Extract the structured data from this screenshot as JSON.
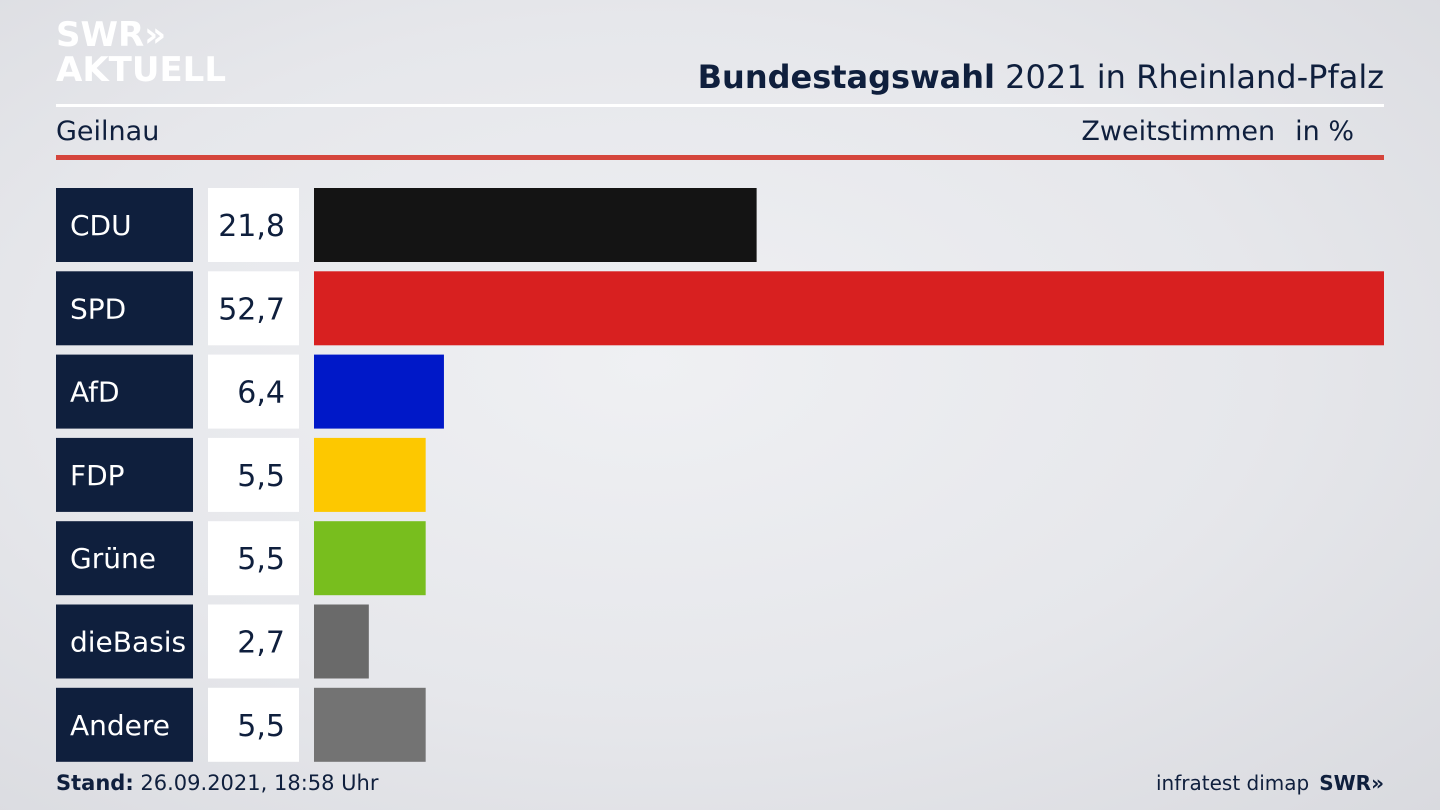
{
  "header": {
    "logo_line1": "SWR»",
    "logo_line2": "AKTUELL",
    "title_bold": "Bundestagswahl",
    "title_rest": " 2021 in Rheinland-Pfalz",
    "region": "Geilnau",
    "measure": "Zweitstimmen",
    "unit": "in %"
  },
  "chart_data": {
    "type": "bar",
    "orientation": "horizontal",
    "categories": [
      "CDU",
      "SPD",
      "AfD",
      "FDP",
      "Grüne",
      "dieBasis",
      "Andere"
    ],
    "values": [
      21.8,
      52.7,
      6.4,
      5.5,
      5.5,
      2.7,
      5.5
    ],
    "value_labels": [
      "21,8",
      "52,7",
      "6,4",
      "5,5",
      "5,5",
      "2,7",
      "5,5"
    ],
    "colors": [
      "#141414",
      "#d82020",
      "#0018c8",
      "#fdc800",
      "#78be1e",
      "#6a6a6a",
      "#737373"
    ],
    "label_box_color": "#0f1f3d"
  },
  "footer": {
    "stand_label": "Stand:",
    "stand_value": " 26.09.2021, 18:58 Uhr",
    "source": "infratest dimap",
    "brand": "SWR»"
  }
}
